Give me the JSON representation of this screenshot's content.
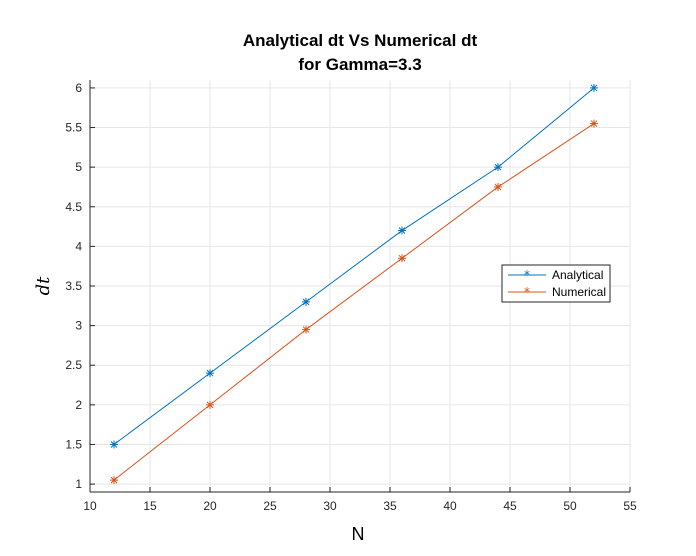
{
  "chart_data": {
    "type": "line",
    "title": [
      "Analytical dt Vs Numerical dt",
      "for Gamma=3.3"
    ],
    "xlabel": "N",
    "ylabel": "dt",
    "xlim": [
      10,
      55
    ],
    "ylim": [
      0.9,
      6.1
    ],
    "xticks": [
      10,
      15,
      20,
      25,
      30,
      35,
      40,
      45,
      50,
      55
    ],
    "yticks": [
      1,
      1.5,
      2,
      2.5,
      3,
      3.5,
      4,
      4.5,
      5,
      5.5,
      6
    ],
    "grid": true,
    "legend_position": "right",
    "x": [
      12,
      20,
      28,
      36,
      44,
      52
    ],
    "series": [
      {
        "name": "Analytical",
        "color": "#0072BD",
        "marker": "asterisk",
        "values": [
          1.5,
          2.4,
          3.3,
          4.2,
          5.0,
          6.0
        ]
      },
      {
        "name": "Numerical",
        "color": "#D95319",
        "marker": "asterisk",
        "values": [
          1.05,
          2.0,
          2.95,
          3.85,
          4.75,
          5.55
        ]
      }
    ]
  }
}
